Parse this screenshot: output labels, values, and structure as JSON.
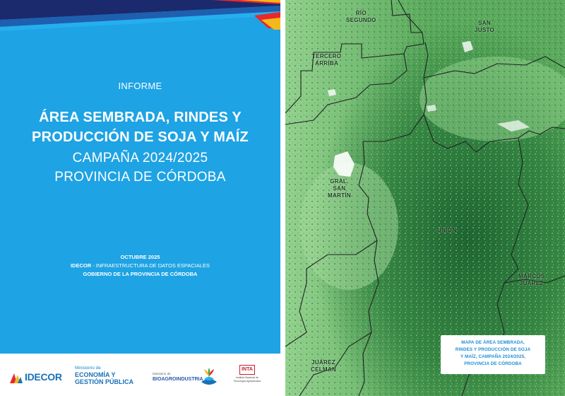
{
  "cover": {
    "report_label": "INFORME",
    "title_line_1": "ÁREA SEMBRADA, RINDES Y",
    "title_line_2": "PRODUCCIÓN DE SOJA Y MAÍZ",
    "subtitle_line_1": "CAMPAÑA 2024/2025",
    "subtitle_line_2": "PROVINCIA DE CÓRDOBA",
    "date": "OCTUBRE 2025",
    "org_line_1_bold": "IDECOR",
    "org_line_1_rest": " - INFRAESTRUCTURA DE DATOS ESPACIALES",
    "org_line_2": "GOBIERNO DE LA PROVINCIA DE CÓRDOBA",
    "colors": {
      "panel": "#1ea3e4",
      "text": "#ffffff"
    }
  },
  "logos": {
    "idecor": "IDECOR",
    "ministerio_small": "Ministerio de",
    "ministerio_line_1": "ECONOMÍA Y",
    "ministerio_line_2": "GESTIÓN PÚBLICA",
    "bioagro_small": "Ministerio de",
    "bioagro_big": "BIOAGROINDUSTRIA",
    "inta_mark": "INTA",
    "inta_caption_1": "Instituto Nacional de",
    "inta_caption_2": "Tecnología Agropecuaria"
  },
  "map": {
    "departments": [
      {
        "line1": "RÍO",
        "line2": "SEGUNDO"
      },
      {
        "line1": "SAN",
        "line2": "JUSTO"
      },
      {
        "line1": "TERCERO",
        "line2": "ARRIBA"
      },
      {
        "line1": "GRAL.",
        "line2": "SAN",
        "line3": "MARTÍN"
      },
      {
        "line1": "UNIÓN"
      },
      {
        "line1": "MARCOS",
        "line2": "JUÁREZ"
      },
      {
        "line1": "JUÁREZ",
        "line2": "CELMAN"
      }
    ],
    "caption_lines": [
      "MAPA DE ÁREA SEMBRADA,",
      "RINDES Y PRODUCCIÓN DE SOJA",
      "Y MAÍZ, CAMPAÑA 2024/2025,",
      "PROVINCIA DE CÓRDOBA"
    ],
    "colors": {
      "light": "#8fcf8a",
      "mid": "#4f9f55",
      "dark": "#1f6b34",
      "border": "#222222",
      "caption": "#1e8fd2"
    }
  }
}
